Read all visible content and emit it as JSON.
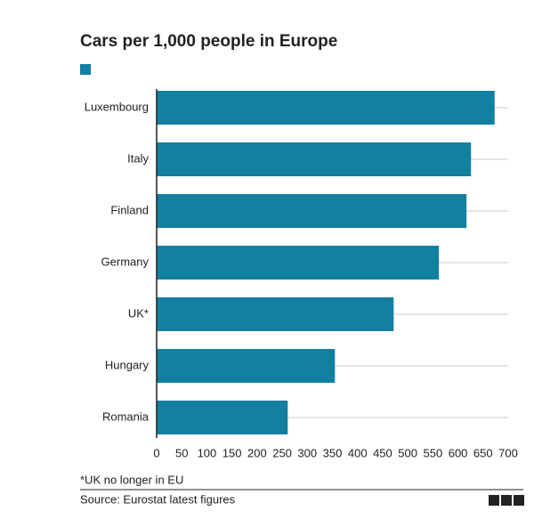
{
  "chart_data": {
    "type": "hbar",
    "title": "Cars per 1,000 people in Europe",
    "categories": [
      "Luxembourg",
      "Italy",
      "Finland",
      "Germany",
      "UK*",
      "Hungary",
      "Romania"
    ],
    "values": [
      673,
      626,
      617,
      562,
      472,
      355,
      261
    ],
    "color": "#1380a1",
    "xlim": [
      0,
      700
    ],
    "xticks": [
      0,
      50,
      100,
      150,
      200,
      250,
      300,
      350,
      400,
      450,
      500,
      550,
      600,
      650,
      700
    ],
    "footnote": "*UK no longer in EU",
    "source": "Source: Eurostat latest figures",
    "logo": [
      "B",
      "B",
      "C"
    ]
  }
}
